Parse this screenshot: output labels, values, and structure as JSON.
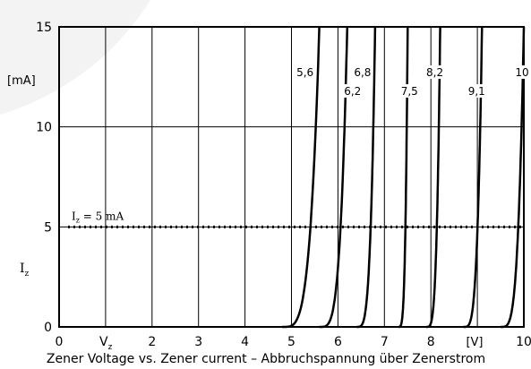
{
  "chart_data": {
    "type": "line",
    "caption": "Zener Voltage vs. Zener current – Abbruchspannung über Zenerstrom",
    "x_axis": {
      "range": [
        0,
        10
      ],
      "ticks": [
        "0",
        "",
        "2",
        "3",
        "4",
        "5",
        "6",
        "7",
        "8",
        "",
        "10"
      ],
      "vz_label_main": "V",
      "vz_label_sub": "z",
      "unit": "[V]"
    },
    "y_axis": {
      "range": [
        0,
        15
      ],
      "ticks": [
        "0",
        "5",
        "10",
        "15"
      ],
      "unit": "[mA]",
      "label_main": "I",
      "label_sub": "z"
    },
    "reference_line": {
      "y": 5,
      "label_main": "I",
      "label_sub": "z",
      "label_rest": " = 5 mA"
    },
    "grid": true,
    "series": [
      {
        "name": "5,6",
        "knee": 4.8,
        "break": 5.6
      },
      {
        "name": "6,2",
        "knee": 5.6,
        "break": 6.2
      },
      {
        "name": "6,8",
        "knee": 6.4,
        "break": 6.8
      },
      {
        "name": "7,5",
        "knee": 7.3,
        "break": 7.5
      },
      {
        "name": "8,2",
        "knee": 7.9,
        "break": 8.2
      },
      {
        "name": "9,1",
        "knee": 8.7,
        "break": 9.1
      },
      {
        "name": "10",
        "knee": 9.5,
        "break": 10.0
      }
    ]
  }
}
